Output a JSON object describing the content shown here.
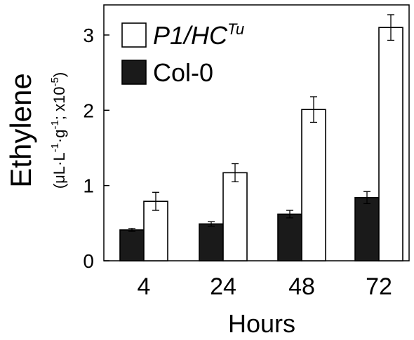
{
  "chart_data": {
    "type": "bar",
    "title": "",
    "xlabel": "Hours",
    "ylabel": "Ethylene",
    "ylabel_units": {
      "open": "(μL·L",
      "exp1": "-1",
      "mid": "·g",
      "exp2": "-1",
      "tail": "; x10",
      "exp3": "-5",
      "close": ")"
    },
    "categories": [
      "4",
      "24",
      "48",
      "72"
    ],
    "ylim": [
      0,
      3.4
    ],
    "yticks": [
      0,
      1,
      2,
      3
    ],
    "grid": false,
    "legend_position": "top-left",
    "series": [
      {
        "name": "Col-0",
        "color": "#1a1a1a",
        "values": [
          0.41,
          0.49,
          0.62,
          0.84
        ],
        "errors": [
          0.02,
          0.03,
          0.05,
          0.08
        ]
      },
      {
        "name": "P1/HC",
        "name_superscript": "Tu",
        "italic": true,
        "color": "#ffffff",
        "values": [
          0.79,
          1.17,
          2.01,
          3.1
        ],
        "errors": [
          0.12,
          0.12,
          0.17,
          0.17
        ]
      }
    ],
    "legend_order": [
      1,
      0
    ]
  }
}
